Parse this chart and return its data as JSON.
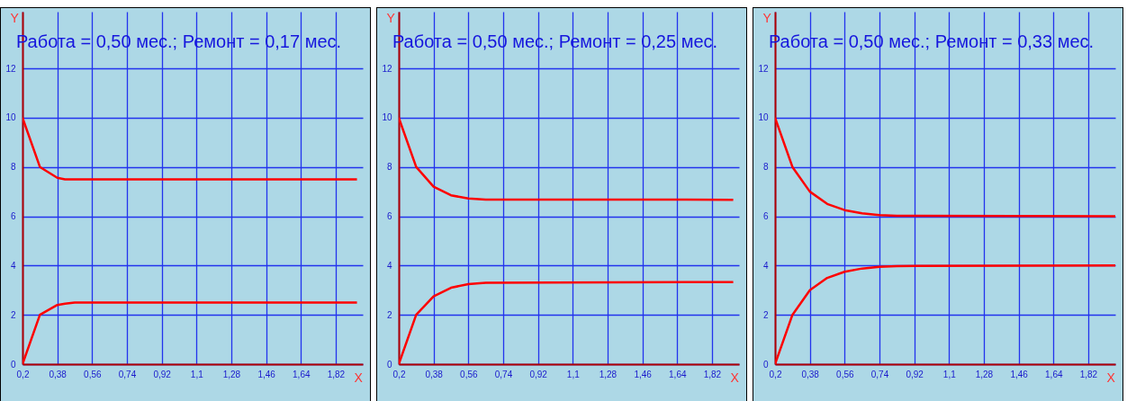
{
  "chart_data": [
    {
      "type": "line",
      "title": "Работа = 0,50 мес.; Ремонт = 0,17 мес.",
      "xlabel": "X",
      "ylabel": "Y",
      "xlim": [
        0.2,
        1.96
      ],
      "ylim": [
        0,
        14.3
      ],
      "xticks": [
        {
          "value": 0.2,
          "label": "0,2"
        },
        {
          "value": 0.38,
          "label": "0,38"
        },
        {
          "value": 0.56,
          "label": "0,56"
        },
        {
          "value": 0.74,
          "label": "0,74"
        },
        {
          "value": 0.92,
          "label": "0,92"
        },
        {
          "value": 1.1,
          "label": "1,1"
        },
        {
          "value": 1.28,
          "label": "1,28"
        },
        {
          "value": 1.46,
          "label": "1,46"
        },
        {
          "value": 1.64,
          "label": "1,64"
        },
        {
          "value": 1.82,
          "label": "1,82"
        }
      ],
      "yticks": [
        0,
        2,
        4,
        6,
        8,
        10,
        12
      ],
      "grid": true,
      "series": [
        {
          "color": "#ff0000",
          "x": [
            0.2,
            0.29,
            0.38,
            0.42,
            1.93
          ],
          "values": [
            10,
            8,
            7.56,
            7.5,
            7.5
          ]
        },
        {
          "color": "#ff0000",
          "x": [
            0.2,
            0.29,
            0.38,
            0.42,
            0.47,
            1.93
          ],
          "values": [
            0,
            2,
            2.4,
            2.45,
            2.5,
            2.5
          ]
        }
      ]
    },
    {
      "type": "line",
      "title": "Работа = 0,50 мес.; Ремонт = 0,25 мес.",
      "xlabel": "X",
      "ylabel": "Y",
      "xlim": [
        0.2,
        1.96
      ],
      "ylim": [
        0,
        14.3
      ],
      "xticks": [
        {
          "value": 0.2,
          "label": "0,2"
        },
        {
          "value": 0.38,
          "label": "0,38"
        },
        {
          "value": 0.56,
          "label": "0,56"
        },
        {
          "value": 0.74,
          "label": "0,74"
        },
        {
          "value": 0.92,
          "label": "0,92"
        },
        {
          "value": 1.1,
          "label": "1,1"
        },
        {
          "value": 1.28,
          "label": "1,28"
        },
        {
          "value": 1.46,
          "label": "1,46"
        },
        {
          "value": 1.64,
          "label": "1,64"
        },
        {
          "value": 1.82,
          "label": "1,82"
        }
      ],
      "yticks": [
        0,
        2,
        4,
        6,
        8,
        10,
        12
      ],
      "grid": true,
      "series": [
        {
          "color": "#ff0000",
          "x": [
            0.2,
            0.29,
            0.38,
            0.47,
            0.56,
            0.65,
            1.93
          ],
          "values": [
            10,
            8,
            7.2,
            6.85,
            6.72,
            6.68,
            6.67
          ]
        },
        {
          "color": "#ff0000",
          "x": [
            0.2,
            0.29,
            0.38,
            0.47,
            0.56,
            0.65,
            1.93
          ],
          "values": [
            0,
            2,
            2.75,
            3.1,
            3.25,
            3.3,
            3.33
          ]
        }
      ]
    },
    {
      "type": "line",
      "title": "Работа = 0,50 мес.; Ремонт = 0,33 мес.",
      "xlabel": "X",
      "ylabel": "Y",
      "xlim": [
        0.2,
        1.96
      ],
      "ylim": [
        0,
        14.3
      ],
      "xticks": [
        {
          "value": 0.2,
          "label": "0,2"
        },
        {
          "value": 0.38,
          "label": "0,38"
        },
        {
          "value": 0.56,
          "label": "0,56"
        },
        {
          "value": 0.74,
          "label": "0,74"
        },
        {
          "value": 0.92,
          "label": "0,92"
        },
        {
          "value": 1.1,
          "label": "1,1"
        },
        {
          "value": 1.28,
          "label": "1,28"
        },
        {
          "value": 1.46,
          "label": "1,46"
        },
        {
          "value": 1.64,
          "label": "1,64"
        },
        {
          "value": 1.82,
          "label": "1,82"
        }
      ],
      "yticks": [
        0,
        2,
        4,
        6,
        8,
        10,
        12
      ],
      "grid": true,
      "series": [
        {
          "color": "#ff0000",
          "x": [
            0.2,
            0.29,
            0.38,
            0.47,
            0.56,
            0.65,
            0.74,
            0.83,
            1.96
          ],
          "values": [
            10,
            8,
            7,
            6.5,
            6.25,
            6.12,
            6.05,
            6.02,
            6.0
          ]
        },
        {
          "color": "#ff0000",
          "x": [
            0.2,
            0.29,
            0.38,
            0.47,
            0.56,
            0.65,
            0.74,
            0.83,
            1.96
          ],
          "values": [
            0,
            2,
            3,
            3.5,
            3.75,
            3.88,
            3.95,
            3.98,
            4.0
          ]
        }
      ]
    }
  ]
}
